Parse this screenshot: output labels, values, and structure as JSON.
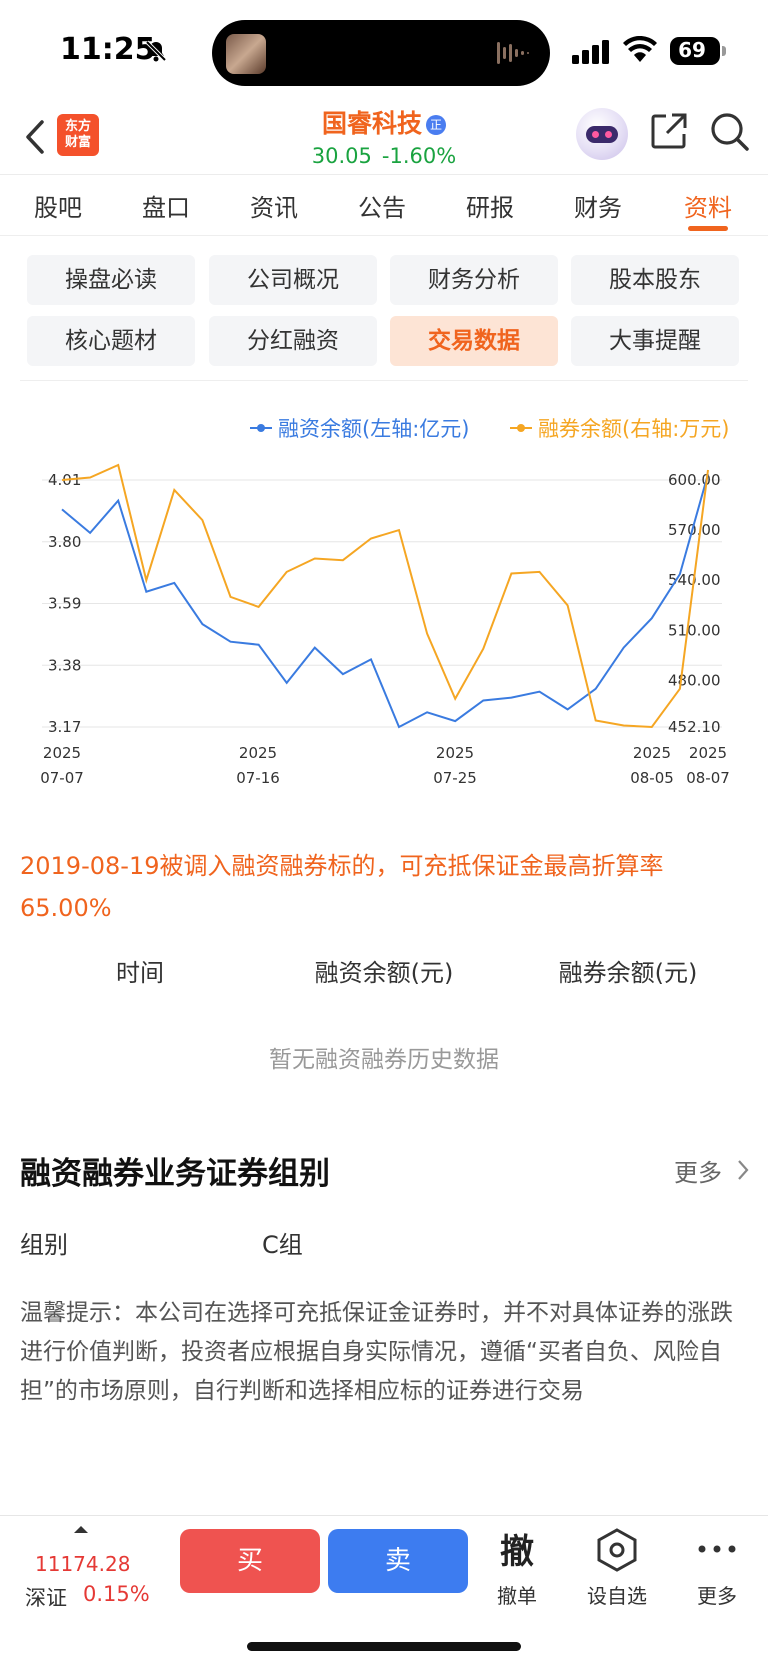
{
  "status": {
    "time": "11:25",
    "battery": "69"
  },
  "header": {
    "logo_line1": "东方",
    "logo_line2": "财富",
    "stock_name": "国睿科技",
    "badge": "正",
    "price": "30.05",
    "change_pct": "-1.60%"
  },
  "tabs": [
    {
      "label": "股吧"
    },
    {
      "label": "盘口"
    },
    {
      "label": "资讯"
    },
    {
      "label": "公告"
    },
    {
      "label": "研报"
    },
    {
      "label": "财务"
    },
    {
      "label": "资料"
    }
  ],
  "active_tab": "资料",
  "subnav": [
    {
      "label": "操盘必读"
    },
    {
      "label": "公司概况"
    },
    {
      "label": "财务分析"
    },
    {
      "label": "股本股东"
    },
    {
      "label": "核心题材"
    },
    {
      "label": "分红融资"
    },
    {
      "label": "交易数据"
    },
    {
      "label": "大事提醒"
    }
  ],
  "active_subnav": "交易数据",
  "chart_data": {
    "type": "line",
    "legend": [
      "融资余额(左轴:亿元)",
      "融券余额(右轴:万元)"
    ],
    "legend_position": "top-right",
    "grid": true,
    "x_ticks": [
      {
        "year": "2025",
        "date": "07-07"
      },
      {
        "year": "2025",
        "date": "07-16"
      },
      {
        "year": "2025",
        "date": "07-25"
      },
      {
        "year": "2025",
        "date": "08-05"
      },
      {
        "year": "2025",
        "date": "08-07"
      }
    ],
    "left_axis": {
      "ticks": [
        "4.01",
        "3.80",
        "3.59",
        "3.38",
        "3.17"
      ],
      "ylim": [
        3.17,
        4.01
      ]
    },
    "right_axis": {
      "ticks": [
        "600.00",
        "570.00",
        "540.00",
        "510.00",
        "480.00",
        "452.10"
      ],
      "ylim": [
        452.1,
        600.0
      ]
    },
    "series": [
      {
        "name": "融资余额(左轴:亿元)",
        "color": "#3a7be0",
        "values": [
          3.91,
          3.83,
          3.94,
          3.63,
          3.66,
          3.52,
          3.46,
          3.45,
          3.32,
          3.44,
          3.35,
          3.4,
          3.17,
          3.22,
          3.19,
          3.26,
          3.27,
          3.29,
          3.23,
          3.3,
          3.44,
          3.54,
          3.69,
          4.03
        ]
      },
      {
        "name": "融券余额(右轴:万元)",
        "color": "#f5a623",
        "values": [
          600.0,
          601.5,
          609.0,
          540.0,
          594.0,
          576.0,
          530.0,
          524.0,
          545.0,
          553.0,
          552.0,
          565.0,
          570.0,
          508.0,
          469.0,
          499.0,
          544.0,
          545.0,
          525.0,
          456.0,
          453.0,
          452.1,
          475.0,
          606.0
        ]
      }
    ]
  },
  "notice": "2019-08-19被调入融资融券标的，可充抵保证金最高折算率65.00%",
  "table_headers": [
    "时间",
    "融资余额(元)",
    "融券余额(元)"
  ],
  "empty_text": "暂无融资融券历史数据",
  "section": {
    "title": "融资融券业务证券组别",
    "more": "更多",
    "group_label": "组别",
    "group_value": "C组"
  },
  "tip": "温馨提示：本公司在选择可充抵保证金证券时，并不对具体证券的涨跌进行价值判断，投资者应根据自身实际情况，遵循“买者自负、风险自担”的市场原则，自行判断和选择相应标的证券进行交易",
  "bottom": {
    "index_value": "11174.28",
    "index_name": "深证",
    "index_change": "0.15%",
    "buy": "买",
    "sell": "卖",
    "cancel_big": "撤",
    "cancel_label": "撤单",
    "watch_label": "设自选",
    "more_label": "更多"
  }
}
